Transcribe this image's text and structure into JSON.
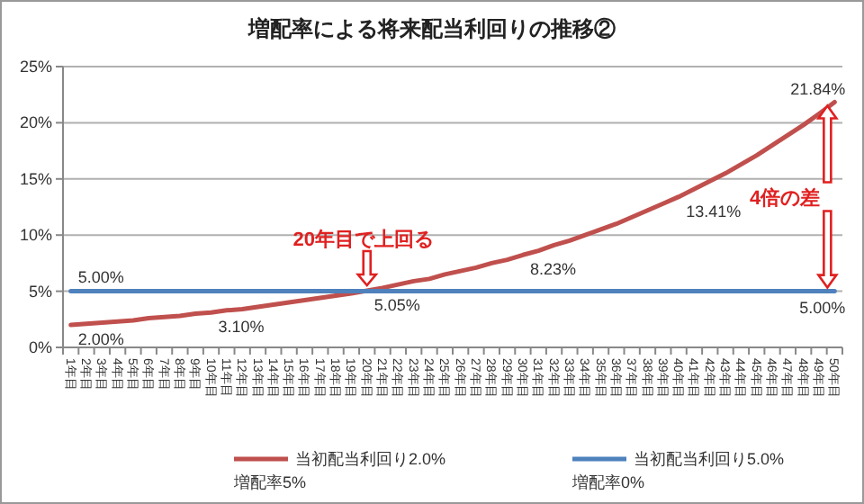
{
  "chart_data": {
    "type": "line",
    "title": "増配率による将来配当利回りの推移②",
    "categories": [
      "1年目",
      "2年目",
      "3年目",
      "4年目",
      "5年目",
      "6年目",
      "7年目",
      "8年目",
      "9年目",
      "10年目",
      "11年目",
      "12年目",
      "13年目",
      "14年目",
      "15年目",
      "16年目",
      "17年目",
      "18年目",
      "19年目",
      "20年目",
      "21年目",
      "22年目",
      "23年目",
      "24年目",
      "25年目",
      "26年目",
      "27年目",
      "28年目",
      "29年目",
      "30年目",
      "31年目",
      "32年目",
      "33年目",
      "34年目",
      "35年目",
      "36年目",
      "37年目",
      "38年目",
      "39年目",
      "40年目",
      "41年目",
      "42年目",
      "43年目",
      "44年目",
      "45年目",
      "46年目",
      "47年目",
      "48年目",
      "49年目",
      "50年目"
    ],
    "series": [
      {
        "name": "当初配当利回り2.0%\n増配率5%",
        "color": "#c0504d",
        "values": [
          2.0,
          2.1,
          2.2,
          2.3,
          2.4,
          2.6,
          2.7,
          2.8,
          3.0,
          3.1,
          3.3,
          3.4,
          3.6,
          3.8,
          4.0,
          4.2,
          4.4,
          4.6,
          4.8,
          5.05,
          5.3,
          5.6,
          5.9,
          6.1,
          6.5,
          6.8,
          7.1,
          7.5,
          7.8,
          8.23,
          8.6,
          9.1,
          9.5,
          10.0,
          10.5,
          11.0,
          11.6,
          12.2,
          12.8,
          13.41,
          14.1,
          14.8,
          15.5,
          16.3,
          17.1,
          18.0,
          18.9,
          19.8,
          20.8,
          21.84
        ],
        "value_labels": [
          "2.00%",
          null,
          null,
          null,
          null,
          null,
          null,
          null,
          null,
          "3.10%",
          null,
          null,
          null,
          null,
          null,
          null,
          null,
          null,
          null,
          "5.05%",
          null,
          null,
          null,
          null,
          null,
          null,
          null,
          null,
          null,
          "8.23%",
          null,
          null,
          null,
          null,
          null,
          null,
          null,
          null,
          null,
          "13.41%",
          null,
          null,
          null,
          null,
          null,
          null,
          null,
          null,
          null,
          "21.84%"
        ]
      },
      {
        "name": "当初配当利回り5.0%\n増配率0%",
        "color": "#4f81bd",
        "values": [
          5,
          5,
          5,
          5,
          5,
          5,
          5,
          5,
          5,
          5,
          5,
          5,
          5,
          5,
          5,
          5,
          5,
          5,
          5,
          5,
          5,
          5,
          5,
          5,
          5,
          5,
          5,
          5,
          5,
          5,
          5,
          5,
          5,
          5,
          5,
          5,
          5,
          5,
          5,
          5,
          5,
          5,
          5,
          5,
          5,
          5,
          5,
          5,
          5,
          5
        ],
        "value_labels": [
          "5.00%",
          null,
          null,
          null,
          null,
          null,
          null,
          null,
          null,
          null,
          null,
          null,
          null,
          null,
          null,
          null,
          null,
          null,
          null,
          null,
          null,
          null,
          null,
          null,
          null,
          null,
          null,
          null,
          null,
          null,
          null,
          null,
          null,
          null,
          null,
          null,
          null,
          null,
          null,
          null,
          null,
          null,
          null,
          null,
          null,
          null,
          null,
          null,
          null,
          "5.00%"
        ]
      }
    ],
    "ylim": [
      0,
      25
    ],
    "yticks": [
      {
        "value": 0,
        "label": "0%"
      },
      {
        "value": 5,
        "label": "5%"
      },
      {
        "value": 10,
        "label": "10%"
      },
      {
        "value": 15,
        "label": "15%"
      },
      {
        "value": 20,
        "label": "20%"
      },
      {
        "value": 25,
        "label": "25%"
      }
    ],
    "grid": "y",
    "legend": "bottom",
    "marker": "none",
    "line_style": "solid",
    "annotations": [
      {
        "text": "20年目で上回る",
        "x": "20年目",
        "y": 5.05
      },
      "4倍の差"
    ]
  }
}
